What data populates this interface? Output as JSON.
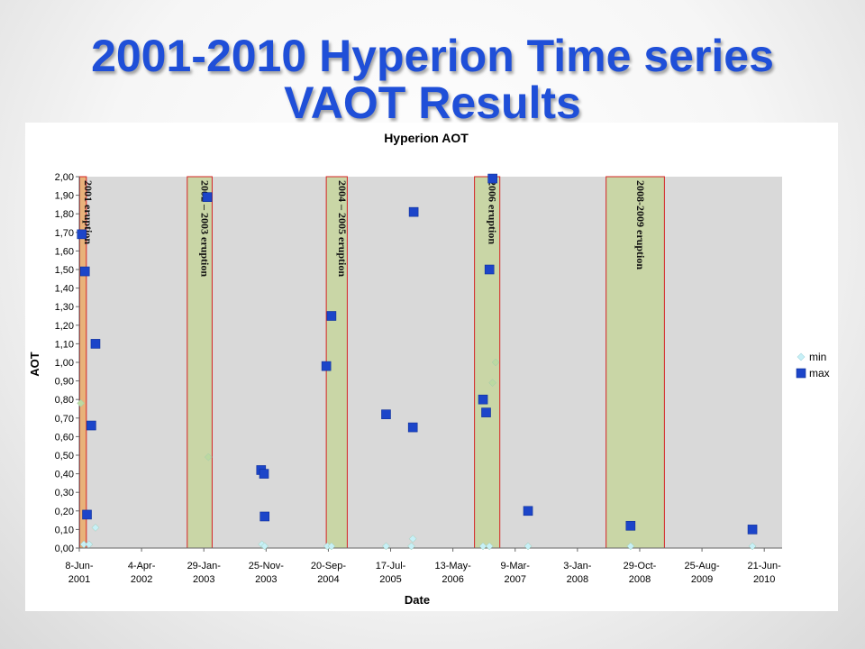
{
  "slide": {
    "title_line1": "2001-2010 Hyperion Time series",
    "title_line2": "VAOT Results"
  },
  "chart_data": {
    "type": "scatter",
    "title": "Hyperion AOT",
    "xlabel": "Date",
    "ylabel": "AOT",
    "xlim": [
      "2001-06-08",
      "2010-09-15"
    ],
    "ylim": [
      0,
      2.0
    ],
    "yticks": [
      "0,00",
      "0,10",
      "0,20",
      "0,30",
      "0,40",
      "0,50",
      "0,60",
      "0,70",
      "0,80",
      "0,90",
      "1,00",
      "1,10",
      "1,20",
      "1,30",
      "1,40",
      "1,50",
      "1,60",
      "1,70",
      "1,80",
      "1,90",
      "2,00"
    ],
    "xticks": [
      {
        "date": "2001-06-08",
        "line1": "8-Jun-",
        "line2": "2001"
      },
      {
        "date": "2002-04-04",
        "line1": "4-Apr-",
        "line2": "2002"
      },
      {
        "date": "2003-01-29",
        "line1": "29-Jan-",
        "line2": "2003"
      },
      {
        "date": "2003-11-25",
        "line1": "25-Nov-",
        "line2": "2003"
      },
      {
        "date": "2004-09-20",
        "line1": "20-Sep-",
        "line2": "2004"
      },
      {
        "date": "2005-07-17",
        "line1": "17-Jul-",
        "line2": "2005"
      },
      {
        "date": "2006-05-13",
        "line1": "13-May-",
        "line2": "2006"
      },
      {
        "date": "2007-03-09",
        "line1": "9-Mar-",
        "line2": "2007"
      },
      {
        "date": "2008-01-03",
        "line1": "3-Jan-",
        "line2": "2008"
      },
      {
        "date": "2008-10-29",
        "line1": "29-Oct-",
        "line2": "2008"
      },
      {
        "date": "2009-08-25",
        "line1": "25-Aug-",
        "line2": "2009"
      },
      {
        "date": "2010-06-21",
        "line1": "21-Jun-",
        "line2": "2010"
      }
    ],
    "legend": "right",
    "grid": false,
    "colors": {
      "plot_bg": "#d9d9d9",
      "band_fill": "#c9d6a6",
      "band_border": "#d42424",
      "first_band_fill": "#e8b27a",
      "max": "#1c45c9",
      "min": "#c7f0f7",
      "min_green": "#bcd9a0",
      "title": "#1f4fd8"
    },
    "series": [
      {
        "name": "min",
        "marker": "diamond",
        "points": [
          {
            "x": "2001-06-15",
            "y": 0.78
          },
          {
            "x": "2001-06-30",
            "y": 0.02
          },
          {
            "x": "2001-07-25",
            "y": 0.02
          },
          {
            "x": "2001-08-25",
            "y": 0.11
          },
          {
            "x": "2003-02-20",
            "y": 0.49
          },
          {
            "x": "2003-11-05",
            "y": 0.02
          },
          {
            "x": "2003-11-18",
            "y": 0.01
          },
          {
            "x": "2004-09-15",
            "y": 0.01
          },
          {
            "x": "2004-10-05",
            "y": 0.01
          },
          {
            "x": "2005-06-25",
            "y": 0.01
          },
          {
            "x": "2005-10-25",
            "y": 0.01
          },
          {
            "x": "2005-11-01",
            "y": 0.05
          },
          {
            "x": "2006-10-05",
            "y": 0.01
          },
          {
            "x": "2006-11-20",
            "y": 0.89
          },
          {
            "x": "2006-12-05",
            "y": 1.0
          },
          {
            "x": "2006-11-05",
            "y": 0.01
          },
          {
            "x": "2007-05-10",
            "y": 0.01
          },
          {
            "x": "2008-09-15",
            "y": 0.01
          },
          {
            "x": "2010-04-25",
            "y": 0.01
          }
        ]
      },
      {
        "name": "max",
        "marker": "square",
        "points": [
          {
            "x": "2001-06-20",
            "y": 1.69
          },
          {
            "x": "2001-07-05",
            "y": 1.49
          },
          {
            "x": "2001-07-15",
            "y": 0.18
          },
          {
            "x": "2001-08-05",
            "y": 0.66
          },
          {
            "x": "2001-08-25",
            "y": 1.1
          },
          {
            "x": "2003-02-15",
            "y": 1.89
          },
          {
            "x": "2003-11-01",
            "y": 0.42
          },
          {
            "x": "2003-11-15",
            "y": 0.4
          },
          {
            "x": "2003-11-18",
            "y": 0.17
          },
          {
            "x": "2004-09-10",
            "y": 0.98
          },
          {
            "x": "2004-10-05",
            "y": 1.25
          },
          {
            "x": "2005-06-25",
            "y": 0.72
          },
          {
            "x": "2005-11-01",
            "y": 0.65
          },
          {
            "x": "2005-11-05",
            "y": 1.81
          },
          {
            "x": "2006-10-05",
            "y": 0.8
          },
          {
            "x": "2006-10-20",
            "y": 0.73
          },
          {
            "x": "2006-11-05",
            "y": 1.5
          },
          {
            "x": "2006-11-20",
            "y": 1.99
          },
          {
            "x": "2007-05-10",
            "y": 0.2
          },
          {
            "x": "2008-09-15",
            "y": 0.12
          },
          {
            "x": "2010-04-25",
            "y": 0.1
          }
        ]
      }
    ],
    "annotations": [
      {
        "label": "2001 eruption",
        "start": "2001-06-10",
        "end": "2001-07-12",
        "y_top": 2.0
      },
      {
        "label": "2002 – 2003  eruption",
        "start": "2002-11-10",
        "end": "2003-03-10",
        "y_top": 2.0
      },
      {
        "label": "2004 – 2005  eruption",
        "start": "2004-09-10",
        "end": "2004-12-20",
        "y_top": 2.0
      },
      {
        "label": "2006  eruption",
        "start": "2006-08-25",
        "end": "2006-12-25",
        "y_top": 2.0
      },
      {
        "label": "2008-2009  eruption",
        "start": "2008-05-20",
        "end": "2009-02-25",
        "y_top": 2.0
      }
    ]
  }
}
